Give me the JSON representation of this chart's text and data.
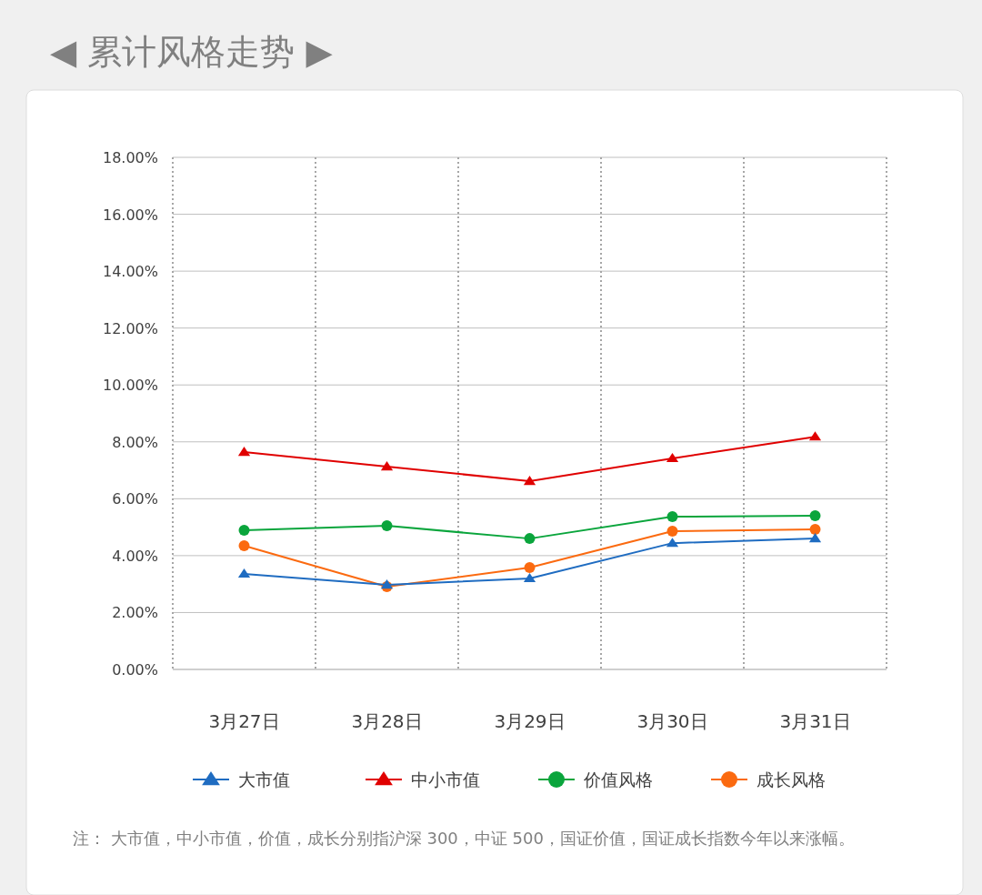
{
  "chart_data": {
    "type": "line",
    "title": "◀ 累计风格走势 ▶",
    "categories": [
      "3月27日",
      "3月28日",
      "3月29日",
      "3月30日",
      "3月31日"
    ],
    "series": [
      {
        "name": "大市值",
        "color": "#1f6cc1",
        "marker": "triangle",
        "values": [
          3.36,
          2.97,
          3.2,
          4.44,
          4.6
        ]
      },
      {
        "name": "中小市值",
        "color": "#e00000",
        "marker": "triangle",
        "values": [
          7.64,
          7.13,
          6.62,
          7.42,
          8.18
        ]
      },
      {
        "name": "价值风格",
        "color": "#0aa53c",
        "marker": "circle",
        "values": [
          4.89,
          5.05,
          4.6,
          5.37,
          5.4
        ]
      },
      {
        "name": "成长风格",
        "color": "#fb6a10",
        "marker": "circle",
        "values": [
          4.35,
          2.91,
          3.58,
          4.86,
          4.92
        ]
      }
    ],
    "ylim": [
      0,
      18
    ],
    "yticks": [
      {
        "value": 0,
        "label": "0.00%"
      },
      {
        "value": 2,
        "label": "2.00%"
      },
      {
        "value": 4,
        "label": "4.00%"
      },
      {
        "value": 6,
        "label": "6.00%"
      },
      {
        "value": 8,
        "label": "8.00%"
      },
      {
        "value": 10,
        "label": "10.00%"
      },
      {
        "value": 12,
        "label": "12.00%"
      },
      {
        "value": 14,
        "label": "14.00%"
      },
      {
        "value": 16,
        "label": "16.00%"
      },
      {
        "value": 18,
        "label": "18.00%"
      }
    ],
    "grid": true,
    "legend": "bottom",
    "annotations": [
      "注：  大市值，中小市值，价值，成长分别指沪深 300，中证 500，国证价值，国证成长指数今年以来涨幅。"
    ]
  }
}
